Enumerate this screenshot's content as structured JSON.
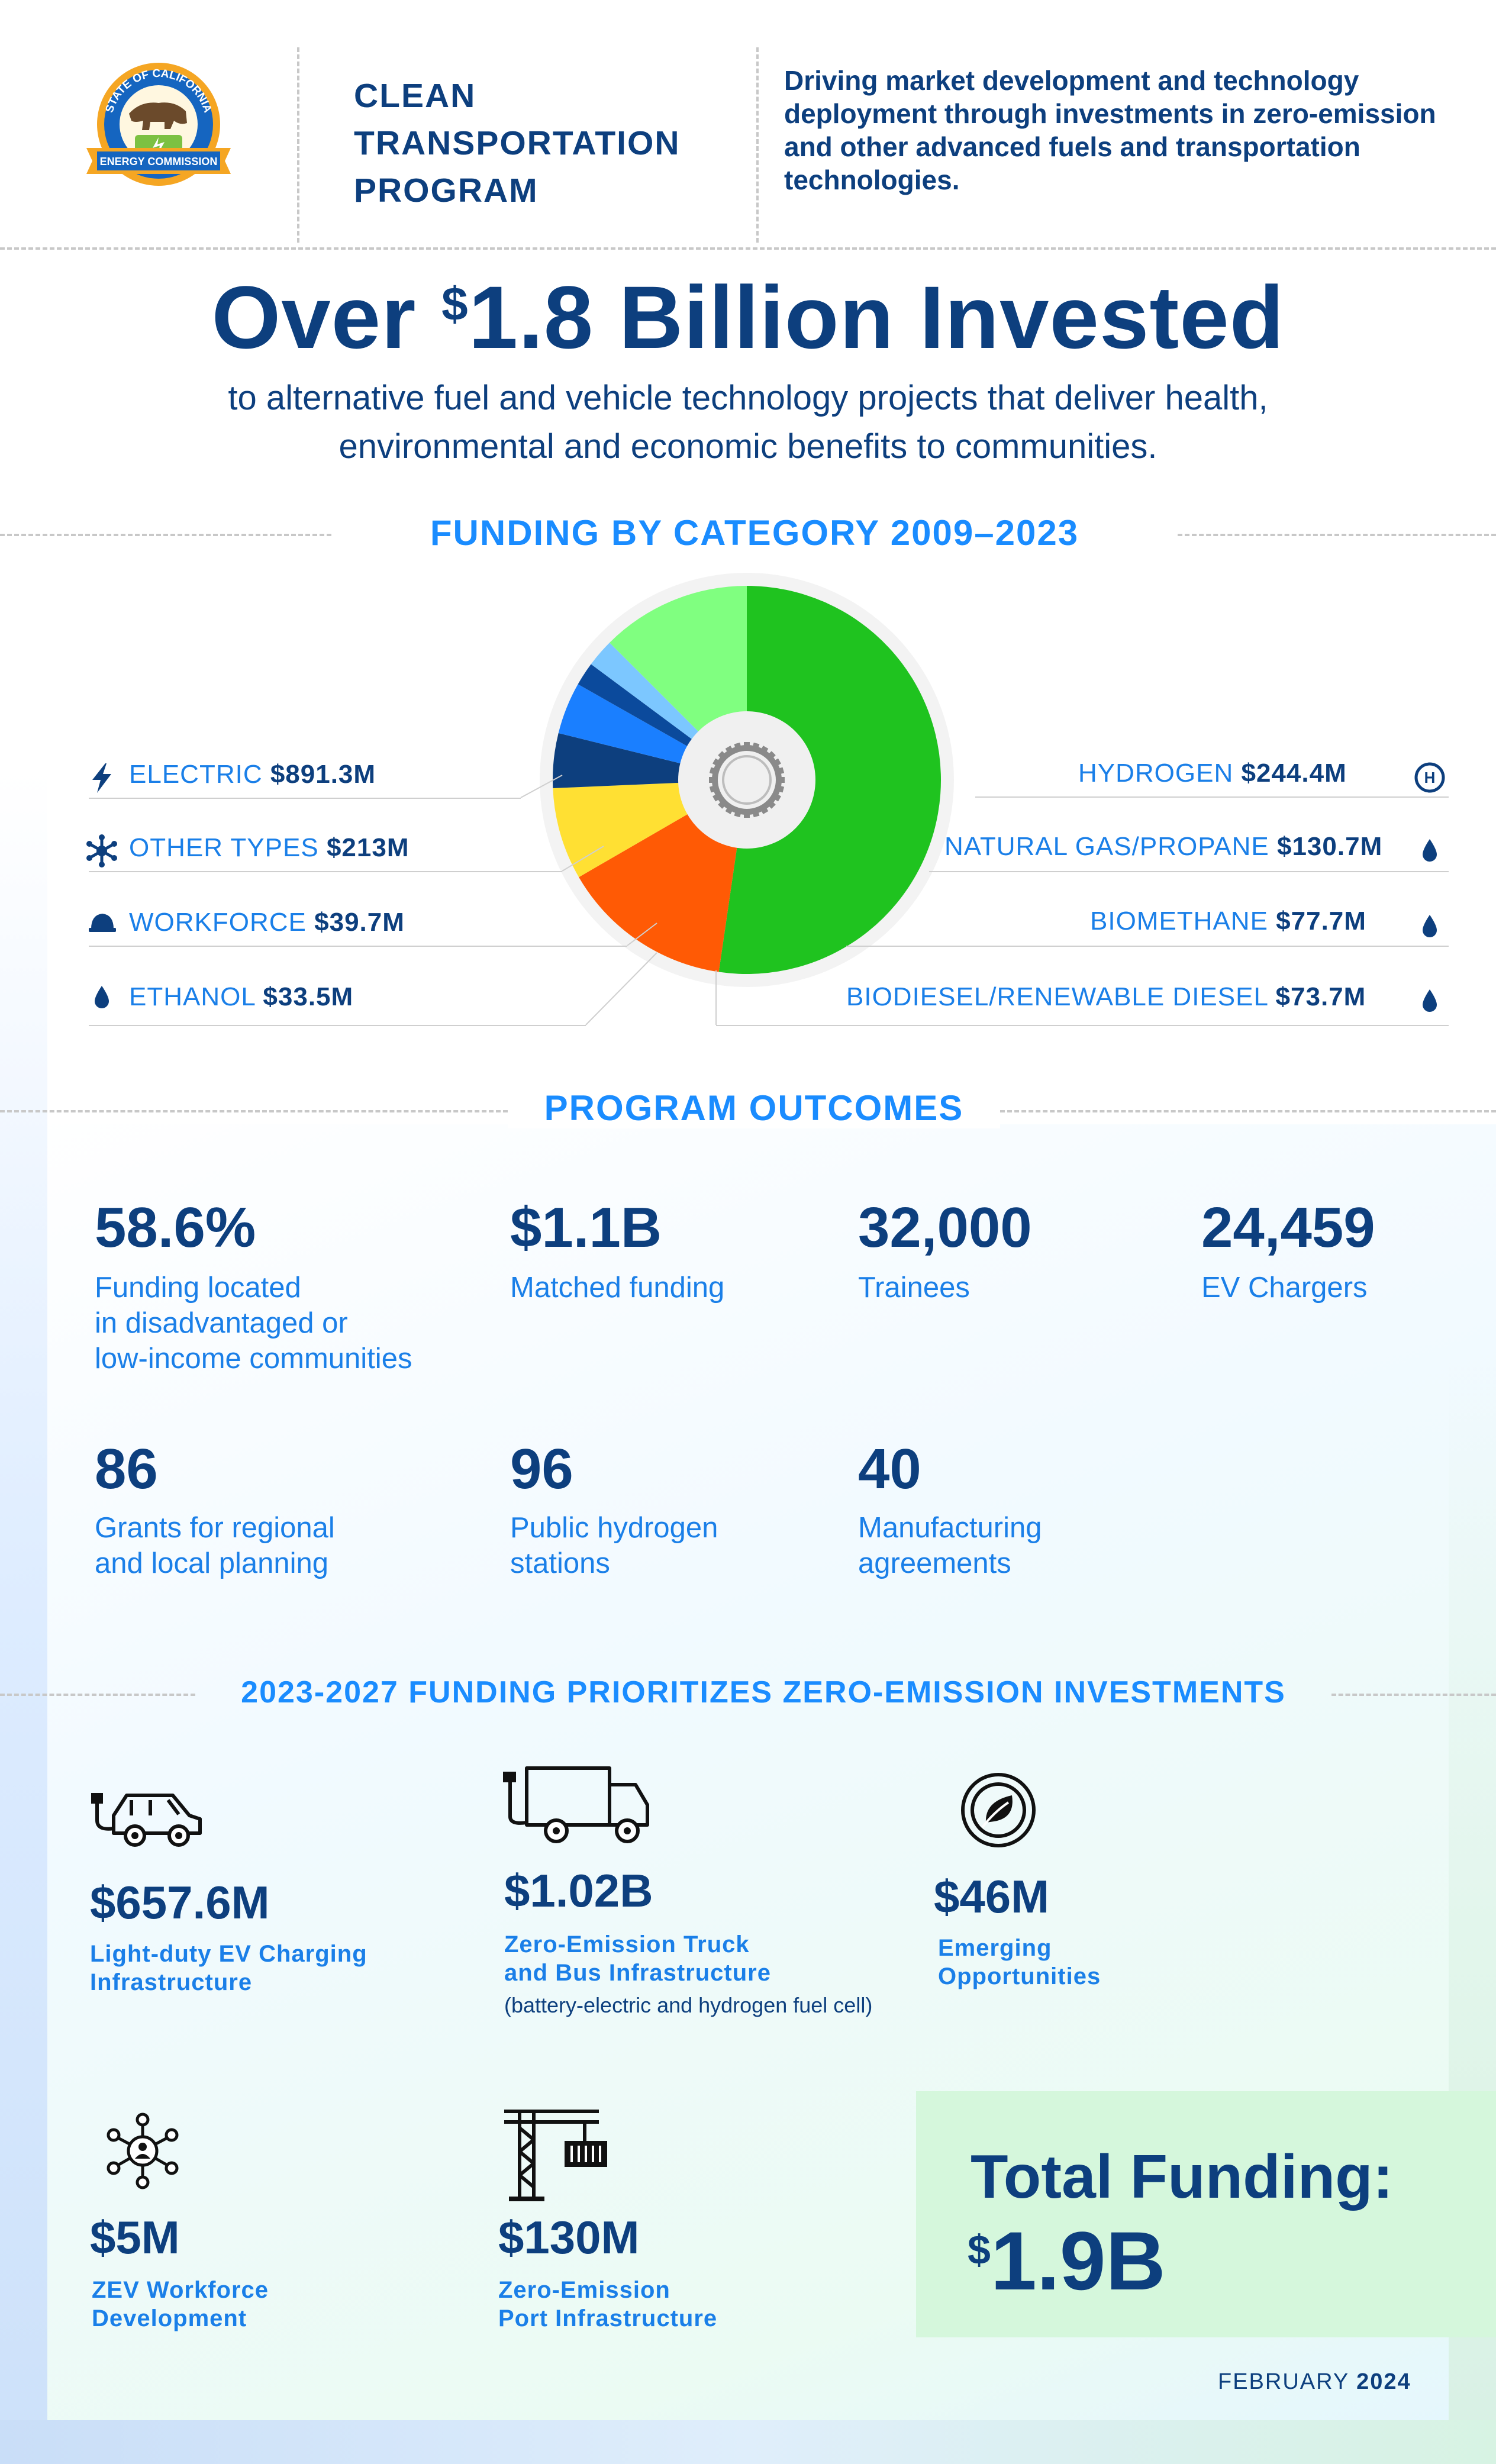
{
  "header": {
    "seal": {
      "top_text": "STATE OF CALIFORNIA",
      "bottom_text": "ENERGY COMMISSION",
      "colors": {
        "gold": "#f5a623",
        "blue": "#1565c0",
        "green": "#7cc142"
      }
    },
    "program_name_lines": [
      "CLEAN",
      "TRANSPORTATION",
      "PROGRAM"
    ],
    "tagline": "Driving market development and technology deployment through investments in zero-emission and other advanced fuels and transportation technologies."
  },
  "headline": {
    "prefix": "Over ",
    "currency": "$",
    "amount": "1.8 Billion Invested",
    "subtitle_lines": [
      "to alternative fuel and vehicle technology projects that deliver health,",
      "environmental and economic benefits to communities."
    ]
  },
  "funding_section": {
    "title": "FUNDING BY CATEGORY 2009–2023"
  },
  "chart_data": {
    "type": "pie",
    "title": "FUNDING BY CATEGORY 2009–2023",
    "unit": "$M",
    "series": [
      {
        "label": "ELECTRIC",
        "amount": "$891.3M",
        "value": 891.3,
        "color": "#1fc31f",
        "icon": "lightning-icon"
      },
      {
        "label": "HYDROGEN",
        "amount": "$244.4M",
        "value": 244.4,
        "color": "#ff5a05",
        "icon": "hydrogen-icon"
      },
      {
        "label": "NATURAL GAS/PROPANE",
        "amount": "$130.7M",
        "value": 130.7,
        "color": "#ffe033",
        "icon": "drop-icon"
      },
      {
        "label": "BIOMETHANE",
        "amount": "$77.7M",
        "value": 77.7,
        "color": "#0d3f7e",
        "icon": "drop-icon"
      },
      {
        "label": "BIODIESEL/RENEWABLE DIESEL",
        "amount": "$73.7M",
        "value": 73.7,
        "color": "#1a7fff",
        "icon": "drop-icon"
      },
      {
        "label": "ETHANOL",
        "amount": "$33.5M",
        "value": 33.5,
        "color": "#0b4a9c",
        "icon": "drop-icon"
      },
      {
        "label": "WORKFORCE",
        "amount": "$39.7M",
        "value": 39.7,
        "color": "#7cc7ff",
        "icon": "hardhat-icon"
      },
      {
        "label": "OTHER TYPES",
        "amount": "$213M",
        "value": 213,
        "color": "#80ff80",
        "icon": "snowflake-icon"
      }
    ]
  },
  "outcomes": {
    "title": "PROGRAM OUTCOMES",
    "items": [
      {
        "value": "58.6%",
        "label_lines": [
          "Funding located",
          "in disadvantaged or",
          "low-income communities"
        ]
      },
      {
        "value": "$1.1B",
        "label_lines": [
          "Matched funding"
        ]
      },
      {
        "value": "32,000",
        "label_lines": [
          "Trainees"
        ]
      },
      {
        "value": "24,459",
        "label_lines": [
          "EV Chargers"
        ]
      },
      {
        "value": "86",
        "label_lines": [
          "Grants for regional",
          "and local planning"
        ]
      },
      {
        "value": "96",
        "label_lines": [
          "Public hydrogen",
          "stations"
        ]
      },
      {
        "value": "40",
        "label_lines": [
          "Manufacturing",
          "agreements"
        ]
      }
    ]
  },
  "priorities": {
    "title": "2023-2027 FUNDING PRIORITIZES ZERO-EMISSION INVESTMENTS",
    "items": [
      {
        "amount": "$657.6M",
        "label_lines": [
          "Light-duty EV Charging",
          "Infrastructure"
        ],
        "icon": "ev-car-icon"
      },
      {
        "amount": "$1.02B",
        "label_lines": [
          "Zero-Emission Truck",
          "and Bus Infrastructure"
        ],
        "note": "(battery-electric and hydrogen fuel cell)",
        "icon": "electric-truck-icon"
      },
      {
        "amount": "$46M",
        "label_lines": [
          "Emerging",
          "Opportunities"
        ],
        "icon": "leaf-cycle-icon"
      },
      {
        "amount": "$5M",
        "label_lines": [
          "ZEV Workforce",
          "Development"
        ],
        "icon": "network-person-icon"
      },
      {
        "amount": "$130M",
        "label_lines": [
          "Zero-Emission",
          "Port Infrastructure"
        ],
        "icon": "port-crane-icon"
      }
    ]
  },
  "total": {
    "label": "Total Funding:",
    "currency": "$",
    "amount": "1.9B"
  },
  "footer": {
    "month": "FEBRUARY",
    "year": "2024"
  }
}
